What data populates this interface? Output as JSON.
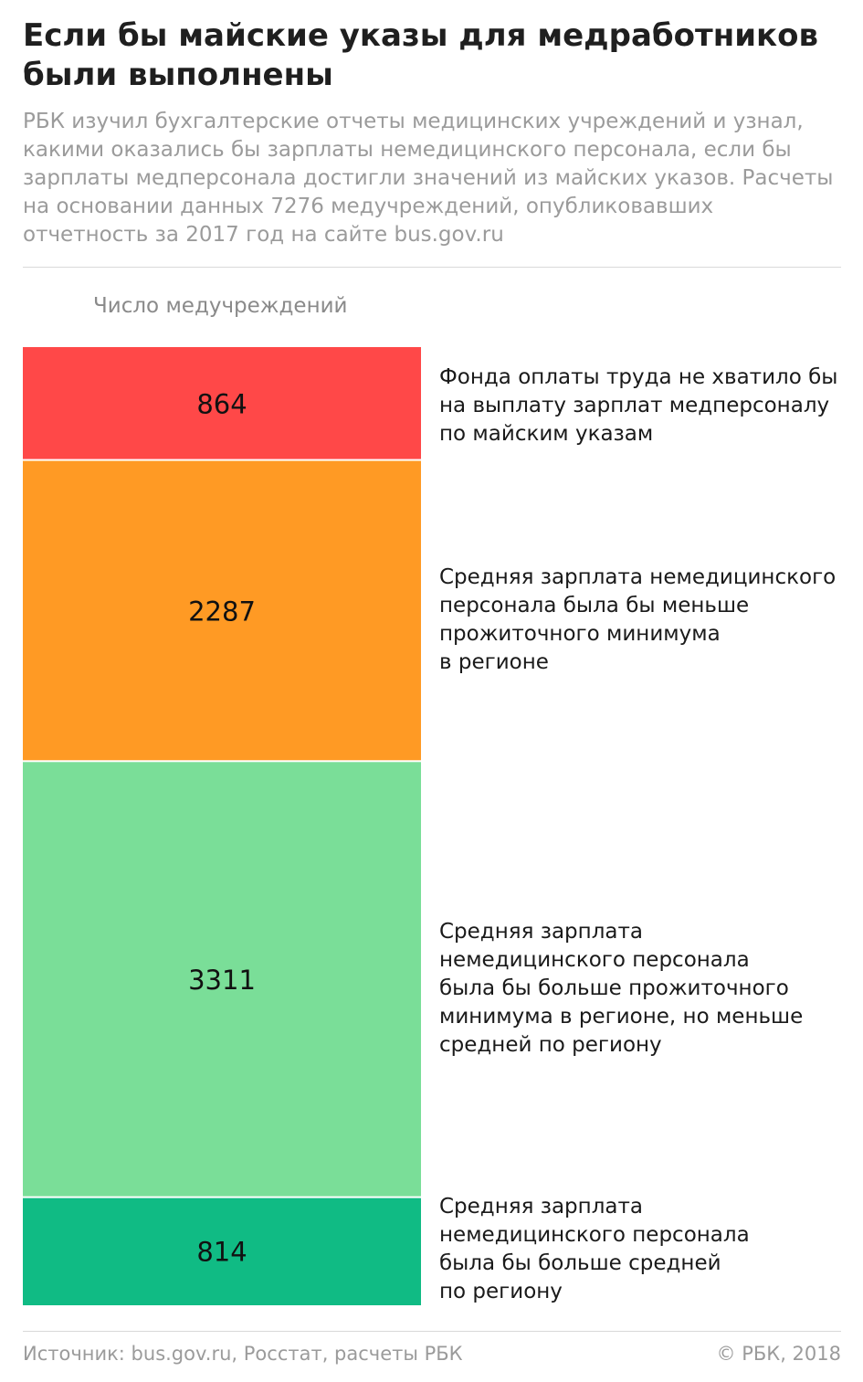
{
  "header": {
    "title": "Если бы майские указы для медработников были выполнены",
    "subtitle": "РБК изучил бухгалтерские отчеты медицинских учреждений и узнал, какими оказались бы зарплаты немедицинского персонала, если бы зарплаты медперсонала достигли значений из майских указов. Расчеты на основании данных 7276 медучреждений, опубликовавших отчетность за 2017 год на сайте bus.gov.ru"
  },
  "chart_data": {
    "type": "bar",
    "stacked": true,
    "orientation": "vertical",
    "axis_label": "Число медучреждений",
    "total": 7276,
    "segments": [
      {
        "value": 864,
        "label": "Фонда оплаты труда не хватило бы\nна выплату зарплат медперсоналу\nпо майским указам",
        "color": "#ff4848"
      },
      {
        "value": 2287,
        "label": "Средняя зарплата немедицинского\nперсонала была бы меньше\nпрожиточного минимума\nв регионе",
        "color": "#ff9a24"
      },
      {
        "value": 3311,
        "label": "Средняя зарплата\nнемедицинского персонала\nбыла бы больше прожиточного\nминимума в регионе, но меньше\nсредней по региону",
        "color": "#7ade98"
      },
      {
        "value": 814,
        "label": "Средняя зарплата\nнемедицинского персонала\nбыла бы больше средней\nпо региону",
        "color": "#10bb84"
      }
    ]
  },
  "footer": {
    "source": "Источник: bus.gov.ru, Росстат, расчеты РБК",
    "copyright": "© РБК, 2018"
  }
}
